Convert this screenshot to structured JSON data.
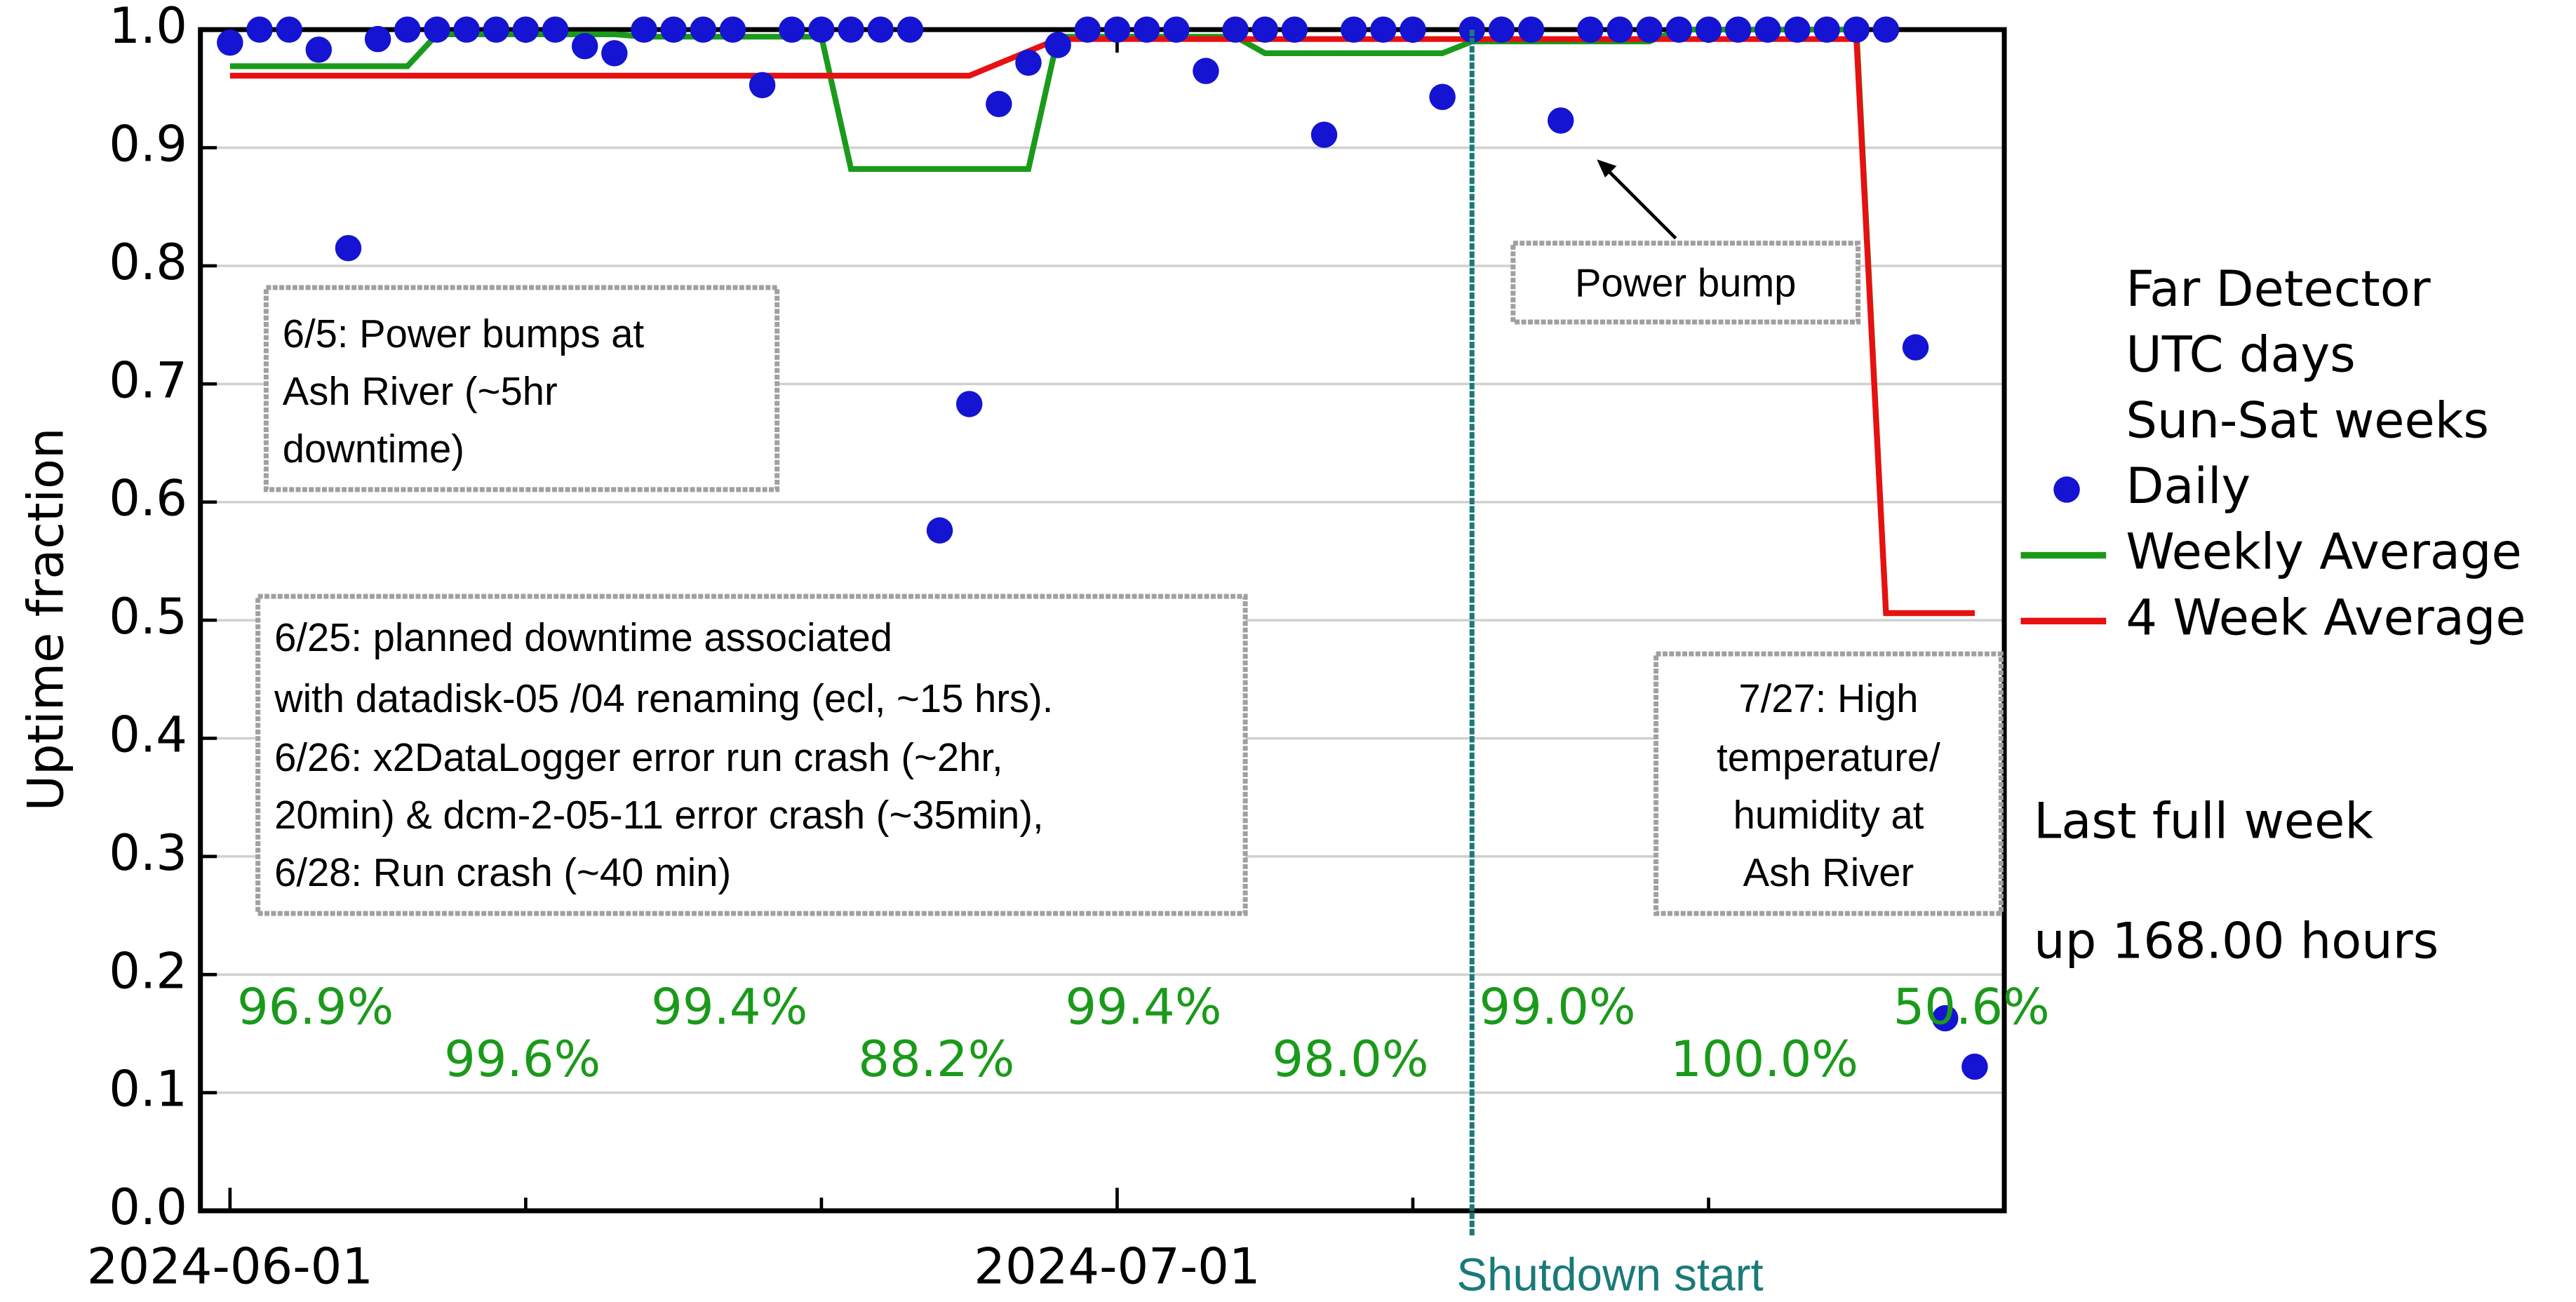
{
  "chart_data": {
    "type": "scatter",
    "ylabel": "Uptime fraction",
    "xlim": [
      "2024-05-31",
      "2024-07-31"
    ],
    "ylim": [
      0,
      1
    ],
    "xticks": [
      {
        "value": "2024-06-01",
        "label": "2024-06-01"
      },
      {
        "value": "2024-07-01",
        "label": "2024-07-01"
      }
    ],
    "xminor_ticks": [
      "2024-06-11",
      "2024-06-21",
      "2024-07-11",
      "2024-07-21"
    ],
    "yticks": [
      {
        "value": 0,
        "label": "0.0"
      },
      0.1,
      0.2,
      0.3,
      0.4,
      0.5,
      0.6,
      0.7,
      0.8,
      0.9,
      {
        "value": 1,
        "label": "1.0"
      }
    ],
    "grid": true,
    "legend_header": [
      "Far Detector",
      "UTC days",
      "Sun-Sat weeks"
    ],
    "series": [
      {
        "name": "Daily",
        "kind": "points",
        "color": "#1414d2",
        "x": [
          "2024-06-01",
          "2024-06-02",
          "2024-06-03",
          "2024-06-04",
          "2024-06-05",
          "2024-06-06",
          "2024-06-07",
          "2024-06-08",
          "2024-06-09",
          "2024-06-10",
          "2024-06-11",
          "2024-06-12",
          "2024-06-13",
          "2024-06-14",
          "2024-06-15",
          "2024-06-16",
          "2024-06-17",
          "2024-06-18",
          "2024-06-19",
          "2024-06-20",
          "2024-06-21",
          "2024-06-22",
          "2024-06-23",
          "2024-06-24",
          "2024-06-25",
          "2024-06-26",
          "2024-06-27",
          "2024-06-28",
          "2024-06-29",
          "2024-06-30",
          "2024-07-01",
          "2024-07-02",
          "2024-07-03",
          "2024-07-04",
          "2024-07-05",
          "2024-07-06",
          "2024-07-07",
          "2024-07-08",
          "2024-07-09",
          "2024-07-10",
          "2024-07-11",
          "2024-07-12",
          "2024-07-13",
          "2024-07-14",
          "2024-07-15",
          "2024-07-16",
          "2024-07-17",
          "2024-07-18",
          "2024-07-19",
          "2024-07-20",
          "2024-07-21",
          "2024-07-22",
          "2024-07-23",
          "2024-07-24",
          "2024-07-25",
          "2024-07-26",
          "2024-07-27",
          "2024-07-28",
          "2024-07-29",
          "2024-07-30"
        ],
        "values": [
          0.989,
          1,
          1,
          0.983,
          0.815,
          0.992,
          1,
          1,
          1,
          1,
          1,
          1,
          0.986,
          0.98,
          1,
          1,
          1,
          1,
          0.953,
          1,
          1,
          1,
          1,
          1,
          0.576,
          0.683,
          0.937,
          0.972,
          0.987,
          1,
          1,
          1,
          1,
          0.965,
          1,
          1,
          1,
          0.911,
          1,
          1,
          1,
          0.943,
          1,
          1,
          1,
          0.923,
          1,
          1,
          1,
          1,
          1,
          1,
          1,
          1,
          1,
          1,
          1,
          0.731,
          0.163,
          0.122
        ]
      },
      {
        "name": "Weekly Average",
        "kind": "line",
        "color": "#1a9a1a",
        "x": [
          "2024-06-01",
          "2024-06-07",
          "2024-06-08",
          "2024-06-14",
          "2024-06-15",
          "2024-06-21",
          "2024-06-22",
          "2024-06-28",
          "2024-06-29",
          "2024-07-05",
          "2024-07-06",
          "2024-07-12",
          "2024-07-13",
          "2024-07-19",
          "2024-07-20",
          "2024-07-26",
          "2024-07-27",
          "2024-07-30"
        ],
        "values": [
          0.969,
          0.969,
          0.996,
          0.996,
          0.994,
          0.994,
          0.882,
          0.882,
          0.994,
          0.994,
          0.98,
          0.98,
          0.99,
          0.99,
          1,
          1,
          0.506,
          0.506
        ]
      },
      {
        "name": "4 Week Average",
        "kind": "line",
        "color": "#e81010",
        "x": [
          "2024-06-01",
          "2024-06-26",
          "2024-06-29",
          "2024-07-26",
          "2024-07-27",
          "2024-07-30"
        ],
        "values": [
          0.961,
          0.961,
          0.992,
          0.992,
          0.506,
          0.506
        ]
      }
    ],
    "weekly_percent": {
      "color": "#1a9a1a",
      "values": [
        96.9,
        99.6,
        99.4,
        88.2,
        99.4,
        98.0,
        99.0,
        100.0,
        50.6
      ],
      "value_labels": [
        "96.9%",
        "99.6%",
        "99.4%",
        "88.2%",
        "99.4%",
        "98.0%",
        "99.0%",
        "100.0%",
        "50.6%"
      ]
    },
    "vline": {
      "x": "2024-07-13",
      "label": "Shutdown start",
      "color": "#1a7a7a"
    },
    "annotations": [
      {
        "lines": [
          "6/5: Power bumps at",
          "Ash River (~5hr",
          "downtime)"
        ]
      },
      {
        "lines": [
          "6/25: planned downtime associated",
          "with datadisk-05 /04 renaming (ecl, ~15 hrs).",
          "6/26: x2DataLogger error run crash (~2hr,",
          "20min) & dcm-2-05-11 error crash (~35min),",
          "6/28: Run crash (~40 min)"
        ]
      },
      {
        "lines": [
          "Power bump"
        ]
      },
      {
        "lines": [
          "7/27: High",
          "temperature/",
          "humidity at",
          "Ash River"
        ]
      }
    ],
    "notes": [
      "Last full week",
      "up 168.00 hours"
    ]
  }
}
